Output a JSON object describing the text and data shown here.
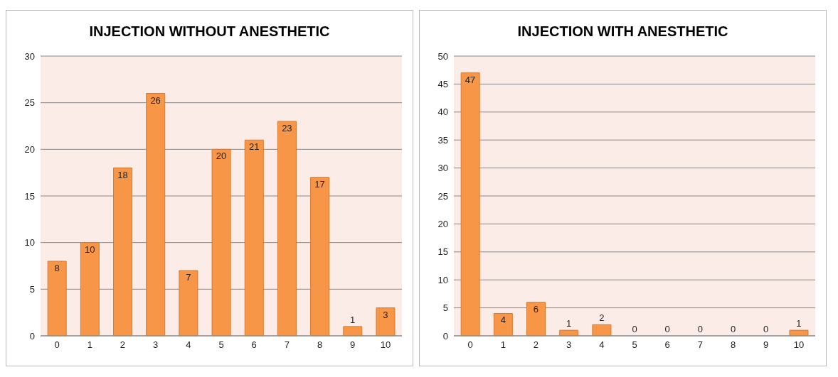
{
  "chart_data": [
    {
      "type": "bar",
      "title": "INJECTION WITHOUT ANESTHETIC",
      "categories": [
        "0",
        "1",
        "2",
        "3",
        "4",
        "5",
        "6",
        "7",
        "8",
        "9",
        "10"
      ],
      "values": [
        8,
        10,
        18,
        26,
        7,
        20,
        21,
        23,
        17,
        1,
        3
      ],
      "color": "#f79646",
      "ylim": [
        0,
        30
      ],
      "yticks": [
        0,
        5,
        10,
        15,
        20,
        25,
        30
      ],
      "grid": "y",
      "data_labels": true
    },
    {
      "type": "bar",
      "title": "INJECTION WITH ANESTHETIC",
      "categories": [
        "0",
        "1",
        "2",
        "3",
        "4",
        "5",
        "6",
        "7",
        "8",
        "9",
        "10"
      ],
      "values": [
        47,
        4,
        6,
        1,
        2,
        0,
        0,
        0,
        0,
        0,
        1
      ],
      "color": "#f79646",
      "ylim": [
        0,
        50
      ],
      "yticks": [
        0,
        5,
        10,
        15,
        20,
        25,
        30,
        35,
        40,
        45,
        50
      ],
      "grid": "y",
      "data_labels": true
    }
  ]
}
